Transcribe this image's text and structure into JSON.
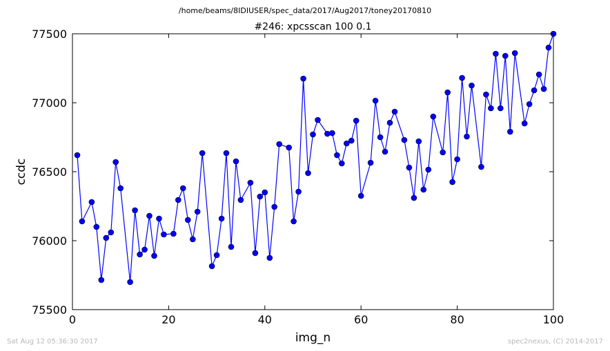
{
  "figure": {
    "suptitle": "/home/beams/8IDIUSER/spec_data/2017/Aug2017/toney20170810",
    "footer_left": "Sat Aug 12 05:36:30 2017",
    "footer_right": "spec2nexus, (C) 2014-2017"
  },
  "chart_data": {
    "type": "line",
    "title": "#246: xpcsscan 100 0.1",
    "xlabel": "img_n",
    "ylabel": "ccdc",
    "xlim": [
      0,
      100
    ],
    "ylim": [
      75500,
      77500
    ],
    "xticks": [
      "0",
      "20",
      "40",
      "60",
      "80",
      "100"
    ],
    "yticks": [
      "75500",
      "76000",
      "76500",
      "77000",
      "77500"
    ],
    "grid": false,
    "legend": "none",
    "line_color": "#0000ff",
    "marker": "circle",
    "x": [
      1,
      2,
      4,
      5,
      6,
      7,
      8,
      9,
      10,
      12,
      13,
      14,
      15,
      16,
      17,
      18,
      19,
      21,
      22,
      23,
      24,
      25,
      26,
      27,
      29,
      30,
      31,
      32,
      33,
      34,
      35,
      37,
      38,
      39,
      40,
      41,
      42,
      43,
      45,
      46,
      47,
      48,
      49,
      50,
      51,
      53,
      54,
      55,
      56,
      57,
      58,
      59,
      60,
      62,
      63,
      64,
      65,
      66,
      67,
      69,
      70,
      71,
      72,
      73,
      74,
      75,
      77,
      78,
      79,
      80,
      81,
      82,
      83,
      85,
      86,
      87,
      88,
      89,
      90,
      91,
      92,
      94,
      95,
      96,
      97,
      98,
      99,
      100
    ],
    "y": [
      76620,
      76140,
      76280,
      76100,
      75715,
      76020,
      76060,
      76570,
      76380,
      75700,
      76220,
      75900,
      75935,
      76180,
      75890,
      76160,
      76045,
      76050,
      76295,
      76380,
      76150,
      76010,
      76210,
      76635,
      75815,
      75895,
      76160,
      76635,
      75955,
      76575,
      76295,
      76420,
      75910,
      76320,
      76350,
      75875,
      76245,
      76700,
      76675,
      76140,
      76355,
      77175,
      76490,
      76770,
      76875,
      76775,
      76780,
      76620,
      76560,
      76705,
      76725,
      76870,
      76325,
      76565,
      77015,
      76750,
      76645,
      76855,
      76935,
      76730,
      76530,
      76310,
      76720,
      76370,
      76515,
      76900,
      76640,
      77075,
      76425,
      76590,
      77180,
      76755,
      77125,
      76535,
      77060,
      76960,
      77355,
      76960,
      77340,
      76790,
      77360,
      76850,
      76990,
      77090,
      77205,
      77100,
      77400,
      77500
    ]
  }
}
